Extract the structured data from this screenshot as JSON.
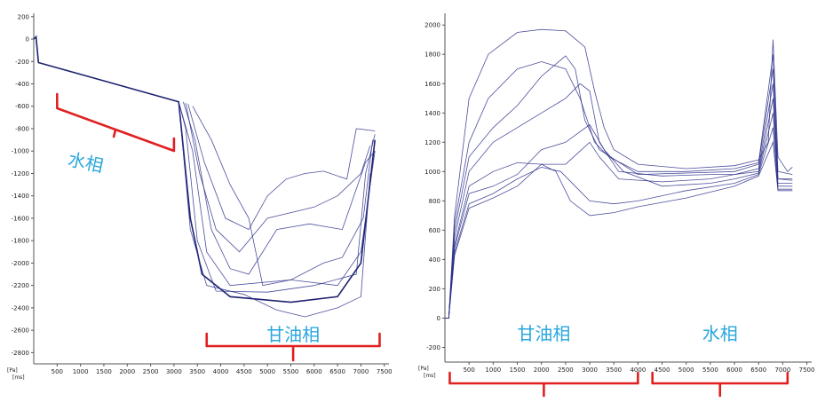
{
  "chart_data": [
    {
      "type": "line",
      "x_unit": "[ms]",
      "y_unit": "[Pa]",
      "x_ticks": [
        500,
        1000,
        1500,
        2000,
        2500,
        3000,
        3500,
        4000,
        4500,
        5000,
        5500,
        6000,
        6500,
        7000,
        7500
      ],
      "y_ticks": [
        200,
        0,
        -200,
        -400,
        -600,
        -800,
        -1000,
        -1200,
        -1400,
        -1600,
        -1800,
        -2000,
        -2200,
        -2400,
        -2600,
        -2800
      ],
      "xlim": [
        0,
        7600
      ],
      "ylim": [
        -2900,
        230
      ],
      "annotations": [
        {
          "label": "水相",
          "x_range": [
            500,
            3000
          ]
        },
        {
          "label": "甘油相",
          "x_range": [
            3700,
            7400
          ]
        }
      ],
      "series": [
        {
          "values": [
            [
              0,
              0
            ],
            [
              50,
              20
            ],
            [
              100,
              -210
            ],
            [
              3100,
              -560
            ],
            [
              3350,
              -1600
            ],
            [
              3600,
              -2100
            ],
            [
              4200,
              -2300
            ],
            [
              5500,
              -2350
            ],
            [
              6500,
              -2300
            ],
            [
              7000,
              -2000
            ],
            [
              7300,
              -900
            ]
          ]
        },
        {
          "values": [
            [
              3100,
              -560
            ],
            [
              3250,
              -800
            ],
            [
              3500,
              -1800
            ],
            [
              3900,
              -2250
            ],
            [
              5000,
              -2260
            ],
            [
              6000,
              -2200
            ],
            [
              6900,
              -2100
            ],
            [
              7100,
              -1200
            ],
            [
              7300,
              -850
            ]
          ]
        },
        {
          "values": [
            [
              3100,
              -560
            ],
            [
              3400,
              -1000
            ],
            [
              3700,
              -1900
            ],
            [
              4200,
              -2200
            ],
            [
              5500,
              -2150
            ],
            [
              6200,
              -2000
            ],
            [
              6600,
              -1950
            ],
            [
              7050,
              -1600
            ],
            [
              7250,
              -900
            ]
          ]
        },
        {
          "values": [
            [
              3200,
              -560
            ],
            [
              3450,
              -900
            ],
            [
              3800,
              -1700
            ],
            [
              4200,
              -2050
            ],
            [
              4600,
              -2100
            ],
            [
              5200,
              -1700
            ],
            [
              5900,
              -1650
            ],
            [
              6600,
              -1700
            ],
            [
              7100,
              -1100
            ],
            [
              7300,
              -1000
            ]
          ]
        },
        {
          "values": [
            [
              3250,
              -570
            ],
            [
              3550,
              -1200
            ],
            [
              3900,
              -1700
            ],
            [
              4400,
              -1900
            ],
            [
              5000,
              -1600
            ],
            [
              5500,
              -1550
            ],
            [
              6000,
              -1500
            ],
            [
              6500,
              -1400
            ],
            [
              7000,
              -1200
            ],
            [
              7200,
              -950
            ]
          ]
        },
        {
          "values": [
            [
              3300,
              -580
            ],
            [
              3650,
              -1100
            ],
            [
              4100,
              -1600
            ],
            [
              4600,
              -1700
            ],
            [
              5000,
              -1400
            ],
            [
              5400,
              -1250
            ],
            [
              5800,
              -1200
            ],
            [
              6200,
              -1180
            ],
            [
              6700,
              -1250
            ],
            [
              6900,
              -800
            ],
            [
              7300,
              -820
            ]
          ]
        },
        {
          "values": [
            [
              3400,
              -600
            ],
            [
              3800,
              -900
            ],
            [
              4200,
              -1300
            ],
            [
              4600,
              -1600
            ],
            [
              4900,
              -2200
            ],
            [
              5500,
              -2150
            ],
            [
              6500,
              -2200
            ],
            [
              7000,
              -1900
            ],
            [
              7300,
              -1000
            ]
          ]
        },
        {
          "values": [
            [
              3100,
              -560
            ],
            [
              3350,
              -1700
            ],
            [
              3700,
              -2200
            ],
            [
              4500,
              -2280
            ],
            [
              5200,
              -2420
            ],
            [
              5800,
              -2480
            ],
            [
              6500,
              -2400
            ],
            [
              7000,
              -2300
            ],
            [
              7200,
              -1200
            ]
          ]
        }
      ]
    },
    {
      "type": "line",
      "x_unit": "[ms]",
      "y_unit": "[Pa]",
      "x_ticks": [
        500,
        1000,
        1500,
        2000,
        2500,
        3000,
        3500,
        4000,
        4500,
        5000,
        5500,
        6000,
        6500,
        7000,
        7500
      ],
      "y_ticks": [
        2000,
        1800,
        1600,
        1400,
        1200,
        1000,
        800,
        600,
        400,
        200,
        0,
        -200
      ],
      "xlim": [
        0,
        7600
      ],
      "ylim": [
        -300,
        2080
      ],
      "annotations": [
        {
          "label": "甘油相",
          "x_range": [
            100,
            4000
          ]
        },
        {
          "label": "水相",
          "x_range": [
            4300,
            7100
          ]
        }
      ],
      "series": [
        {
          "values": [
            [
              0,
              0
            ],
            [
              80,
              0
            ],
            [
              200,
              700
            ],
            [
              500,
              1500
            ],
            [
              900,
              1800
            ],
            [
              1500,
              1950
            ],
            [
              2000,
              1970
            ],
            [
              2500,
              1960
            ],
            [
              2900,
              1850
            ],
            [
              3100,
              1550
            ],
            [
              3300,
              1300
            ],
            [
              3500,
              1150
            ],
            [
              4000,
              1050
            ],
            [
              5000,
              1020
            ],
            [
              6000,
              1040
            ],
            [
              6500,
              1080
            ],
            [
              6700,
              1200
            ],
            [
              6800,
              1900
            ],
            [
              6900,
              1100
            ],
            [
              7100,
              1000
            ],
            [
              7200,
              1030
            ]
          ]
        },
        {
          "values": [
            [
              0,
              0
            ],
            [
              80,
              0
            ],
            [
              200,
              650
            ],
            [
              500,
              1200
            ],
            [
              900,
              1500
            ],
            [
              1500,
              1700
            ],
            [
              2000,
              1750
            ],
            [
              2500,
              1700
            ],
            [
              2800,
              1500
            ],
            [
              3100,
              1200
            ],
            [
              3400,
              1100
            ],
            [
              4000,
              1000
            ],
            [
              5000,
              1000
            ],
            [
              6000,
              1020
            ],
            [
              6500,
              1060
            ],
            [
              6800,
              1800
            ],
            [
              6900,
              1000
            ],
            [
              7200,
              980
            ]
          ]
        },
        {
          "values": [
            [
              0,
              0
            ],
            [
              80,
              0
            ],
            [
              200,
              600
            ],
            [
              500,
              1100
            ],
            [
              1000,
              1300
            ],
            [
              1500,
              1450
            ],
            [
              2000,
              1650
            ],
            [
              2500,
              1790
            ],
            [
              2700,
              1700
            ],
            [
              2900,
              1350
            ],
            [
              3200,
              1150
            ],
            [
              4000,
              980
            ],
            [
              5000,
              990
            ],
            [
              6000,
              1000
            ],
            [
              6500,
              1050
            ],
            [
              6800,
              1700
            ],
            [
              6900,
              950
            ],
            [
              7200,
              950
            ]
          ]
        },
        {
          "values": [
            [
              0,
              0
            ],
            [
              80,
              0
            ],
            [
              200,
              550
            ],
            [
              500,
              1000
            ],
            [
              1000,
              1200
            ],
            [
              1500,
              1300
            ],
            [
              2000,
              1400
            ],
            [
              2500,
              1500
            ],
            [
              2800,
              1600
            ],
            [
              3000,
              1550
            ],
            [
              3200,
              1200
            ],
            [
              3600,
              1000
            ],
            [
              4500,
              970
            ],
            [
              5500,
              980
            ],
            [
              6000,
              980
            ],
            [
              6500,
              1020
            ],
            [
              6800,
              1600
            ],
            [
              6900,
              950
            ],
            [
              7200,
              940
            ]
          ]
        },
        {
          "values": [
            [
              0,
              0
            ],
            [
              80,
              0
            ],
            [
              200,
              500
            ],
            [
              500,
              900
            ],
            [
              1000,
              1000
            ],
            [
              1500,
              1060
            ],
            [
              2000,
              1050
            ],
            [
              2500,
              1050
            ],
            [
              3000,
              1200
            ],
            [
              3200,
              1100
            ],
            [
              3600,
              950
            ],
            [
              4500,
              930
            ],
            [
              5500,
              950
            ],
            [
              6000,
              980
            ],
            [
              6500,
              1000
            ],
            [
              6800,
              1500
            ],
            [
              6900,
              920
            ],
            [
              7200,
              920
            ]
          ]
        },
        {
          "values": [
            [
              0,
              0
            ],
            [
              80,
              0
            ],
            [
              200,
              480
            ],
            [
              500,
              850
            ],
            [
              1000,
              900
            ],
            [
              1500,
              980
            ],
            [
              2000,
              1150
            ],
            [
              2500,
              1200
            ],
            [
              3000,
              1320
            ],
            [
              3300,
              1150
            ],
            [
              3700,
              1000
            ],
            [
              4500,
              900
            ],
            [
              5500,
              920
            ],
            [
              6000,
              950
            ],
            [
              6500,
              990
            ],
            [
              6800,
              1400
            ],
            [
              6900,
              900
            ],
            [
              7200,
              900
            ]
          ]
        },
        {
          "values": [
            [
              0,
              0
            ],
            [
              80,
              0
            ],
            [
              200,
              450
            ],
            [
              500,
              780
            ],
            [
              1000,
              850
            ],
            [
              1500,
              950
            ],
            [
              2000,
              1030
            ],
            [
              2400,
              1000
            ],
            [
              2700,
              900
            ],
            [
              3000,
              800
            ],
            [
              3500,
              780
            ],
            [
              4000,
              800
            ],
            [
              5000,
              870
            ],
            [
              6000,
              920
            ],
            [
              6500,
              980
            ],
            [
              6800,
              1300
            ],
            [
              6900,
              880
            ],
            [
              7200,
              880
            ]
          ]
        },
        {
          "values": [
            [
              0,
              0
            ],
            [
              80,
              0
            ],
            [
              200,
              430
            ],
            [
              500,
              750
            ],
            [
              1000,
              820
            ],
            [
              1500,
              900
            ],
            [
              2000,
              1050
            ],
            [
              2300,
              1000
            ],
            [
              2600,
              800
            ],
            [
              3000,
              700
            ],
            [
              3500,
              720
            ],
            [
              4000,
              760
            ],
            [
              5000,
              820
            ],
            [
              6000,
              900
            ],
            [
              6500,
              970
            ],
            [
              6800,
              1200
            ],
            [
              6900,
              870
            ],
            [
              7200,
              870
            ]
          ]
        }
      ]
    }
  ]
}
